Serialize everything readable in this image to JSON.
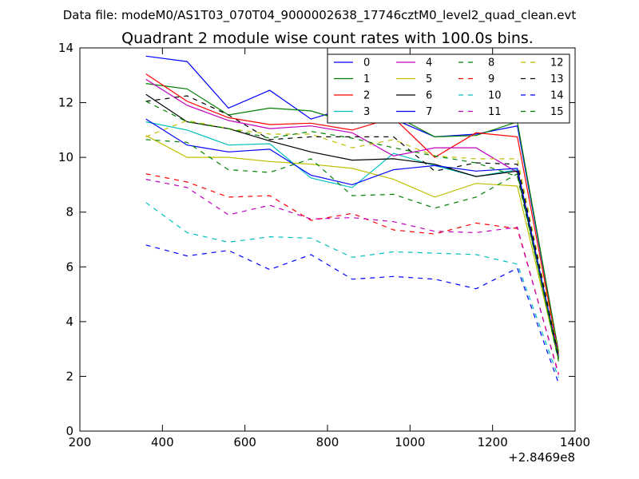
{
  "figure_label": "Data file: modeM0/AS1T03_070T04_9000002638_17746cztM0_level2_quad_clean.evt",
  "chart_data": {
    "type": "line",
    "title": "Quadrant 2 module wise count rates with 100.0s bins.",
    "xlabel": "",
    "ylabel": "",
    "x_offset_label": "+2.8469e8",
    "xlim": [
      200,
      1400
    ],
    "ylim": [
      0,
      14
    ],
    "x_ticks": [
      200,
      400,
      600,
      800,
      1000,
      1200,
      1400
    ],
    "y_ticks": [
      0,
      2,
      4,
      6,
      8,
      10,
      12,
      14
    ],
    "grid": false,
    "legend_position": "top-right",
    "legend_columns": 4,
    "x": [
      360,
      460,
      560,
      660,
      760,
      860,
      960,
      1060,
      1160,
      1260,
      1360
    ],
    "series": [
      {
        "name": "0",
        "color": "#0000ff",
        "dash": "solid",
        "values": [
          13.7,
          13.5,
          11.8,
          12.45,
          11.4,
          11.85,
          11.4,
          10.75,
          10.85,
          11.15,
          2.9
        ]
      },
      {
        "name": "1",
        "color": "#008000",
        "dash": "solid",
        "values": [
          12.7,
          12.5,
          11.55,
          11.8,
          11.7,
          11.25,
          11.55,
          10.75,
          10.8,
          11.3,
          2.9
        ]
      },
      {
        "name": "2",
        "color": "#ff0000",
        "dash": "solid",
        "values": [
          13.05,
          12.05,
          11.45,
          11.2,
          11.25,
          11.0,
          11.45,
          10.0,
          10.9,
          10.75,
          2.8
        ]
      },
      {
        "name": "3",
        "color": "#00bfbf",
        "dash": "solid",
        "values": [
          11.3,
          11.0,
          10.45,
          10.5,
          9.25,
          8.9,
          10.15,
          9.7,
          9.3,
          9.55,
          2.7
        ]
      },
      {
        "name": "4",
        "color": "#bf00bf",
        "dash": "solid",
        "values": [
          12.85,
          11.9,
          11.35,
          11.05,
          11.15,
          10.9,
          10.05,
          10.35,
          10.35,
          9.45,
          2.75
        ]
      },
      {
        "name": "5",
        "color": "#bfbf00",
        "dash": "solid",
        "values": [
          10.8,
          10.0,
          10.0,
          9.85,
          9.75,
          9.6,
          9.2,
          8.55,
          9.05,
          8.95,
          2.6
        ]
      },
      {
        "name": "6",
        "color": "#000000",
        "dash": "solid",
        "values": [
          12.3,
          11.3,
          11.05,
          10.6,
          10.2,
          9.9,
          9.95,
          9.75,
          9.3,
          9.5,
          2.65
        ]
      },
      {
        "name": "7",
        "color": "#0000ff",
        "dash": "solid",
        "values": [
          11.4,
          10.45,
          10.2,
          10.3,
          9.35,
          9.0,
          9.55,
          9.7,
          9.5,
          9.6,
          2.7
        ]
      },
      {
        "name": "8",
        "color": "#008000",
        "dash": "dashed",
        "values": [
          10.65,
          10.55,
          9.55,
          9.45,
          9.95,
          8.6,
          8.65,
          8.15,
          8.55,
          9.4,
          2.55
        ]
      },
      {
        "name": "9",
        "color": "#ff0000",
        "dash": "dashed",
        "values": [
          9.4,
          9.1,
          8.55,
          8.6,
          7.7,
          7.95,
          7.35,
          7.2,
          7.6,
          7.4,
          2.1
        ]
      },
      {
        "name": "10",
        "color": "#00bfbf",
        "dash": "dashed",
        "values": [
          8.35,
          7.25,
          6.9,
          7.1,
          7.05,
          6.35,
          6.55,
          6.5,
          6.45,
          6.1,
          1.95
        ]
      },
      {
        "name": "11",
        "color": "#bf00bf",
        "dash": "dashed",
        "values": [
          9.2,
          8.9,
          7.9,
          8.25,
          7.75,
          7.8,
          7.65,
          7.3,
          7.25,
          7.45,
          2.05
        ]
      },
      {
        "name": "12",
        "color": "#bfbf00",
        "dash": "dashed",
        "values": [
          10.75,
          11.35,
          11.05,
          10.85,
          10.85,
          10.35,
          10.65,
          10.05,
          9.95,
          9.95,
          2.85
        ]
      },
      {
        "name": "13",
        "color": "#000000",
        "dash": "dashed",
        "values": [
          12.05,
          12.25,
          11.55,
          10.65,
          10.75,
          10.75,
          10.75,
          9.5,
          9.8,
          9.75,
          2.75
        ]
      },
      {
        "name": "14",
        "color": "#0000ff",
        "dash": "dashed",
        "values": [
          6.8,
          6.4,
          6.6,
          5.9,
          6.45,
          5.55,
          5.65,
          5.55,
          5.2,
          5.95,
          1.75
        ]
      },
      {
        "name": "15",
        "color": "#008000",
        "dash": "dashed",
        "values": [
          12.05,
          11.3,
          11.05,
          10.7,
          10.95,
          10.7,
          10.35,
          10.05,
          9.8,
          9.3,
          2.65
        ]
      }
    ]
  }
}
